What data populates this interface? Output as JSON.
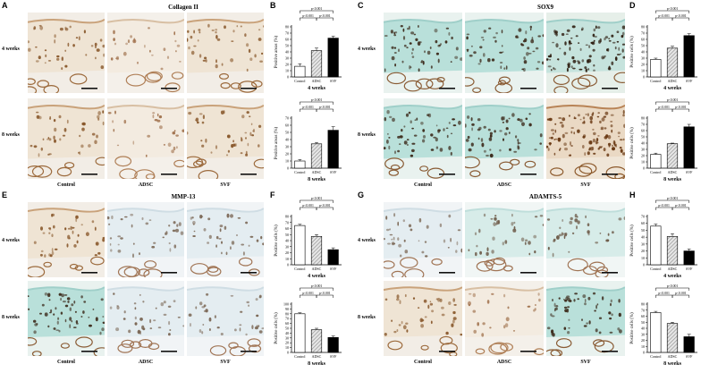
{
  "panels": {
    "A": {
      "label": "A",
      "title": "Collagen II"
    },
    "B": {
      "label": "B"
    },
    "C": {
      "label": "C",
      "title": "SOX9"
    },
    "D": {
      "label": "D"
    },
    "E": {
      "label": "E",
      "title": "MMP-13"
    },
    "F": {
      "label": "F"
    },
    "G": {
      "label": "G",
      "title": "ADAMTS-5"
    },
    "H": {
      "label": "H"
    }
  },
  "rows": {
    "w4": "4 weeks",
    "w8": "8 weeks"
  },
  "cols": {
    "control": "Control",
    "adsc": "ADSC",
    "svf": "SVF"
  },
  "colors": {
    "control": "#ffffff",
    "adsc": "#b9b9b9",
    "svf": "#000000",
    "brown": "#b07a45",
    "teal": "#7fc6c0",
    "bg": "#f1ece6"
  },
  "chart_data": [
    {
      "id": "B1",
      "type": "bar",
      "categories": [
        "Control",
        "ADSC",
        "SVF"
      ],
      "values": [
        17,
        42,
        62
      ],
      "errors": [
        4,
        4,
        3
      ],
      "ylabel": "Positive areas (%)",
      "xlabel": "4 weeks",
      "ylim": [
        0,
        80
      ],
      "yticks": [
        0,
        10,
        20,
        30,
        40,
        50,
        60,
        70,
        80
      ],
      "annotations": [
        {
          "from": 0,
          "to": 1,
          "text": "p<0.001",
          "level": 1
        },
        {
          "from": 1,
          "to": 2,
          "text": "p<0.001",
          "level": 1
        },
        {
          "from": 0,
          "to": 2,
          "text": "p<0.001",
          "level": 2
        }
      ]
    },
    {
      "id": "B2",
      "type": "bar",
      "categories": [
        "Control",
        "ADSC",
        "SVF"
      ],
      "values": [
        10,
        34,
        53
      ],
      "errors": [
        2,
        2,
        5
      ],
      "ylabel": "Positive areas (%)",
      "xlabel": "8 weeks",
      "ylim": [
        0,
        70
      ],
      "yticks": [
        0,
        10,
        20,
        30,
        40,
        50,
        60,
        70
      ],
      "annotations": [
        {
          "from": 0,
          "to": 1,
          "text": "p<0.001",
          "level": 1
        },
        {
          "from": 1,
          "to": 2,
          "text": "p<0.001",
          "level": 1
        },
        {
          "from": 0,
          "to": 2,
          "text": "p<0.001",
          "level": 2
        }
      ]
    },
    {
      "id": "D1",
      "type": "bar",
      "categories": [
        "Control",
        "ADSC",
        "SVF"
      ],
      "values": [
        28,
        46,
        66
      ],
      "errors": [
        2,
        3,
        3
      ],
      "ylabel": "Positive cells (%)",
      "xlabel": "4 weeks",
      "ylim": [
        0,
        80
      ],
      "yticks": [
        0,
        10,
        20,
        30,
        40,
        50,
        60,
        70,
        80
      ],
      "annotations": [
        {
          "from": 0,
          "to": 1,
          "text": "p<0.001",
          "level": 1
        },
        {
          "from": 1,
          "to": 2,
          "text": "p<0.001",
          "level": 1
        },
        {
          "from": 0,
          "to": 2,
          "text": "p<0.001",
          "level": 2
        }
      ]
    },
    {
      "id": "D2",
      "type": "bar",
      "categories": [
        "Control",
        "ADSC",
        "SVF"
      ],
      "values": [
        22,
        39,
        66
      ],
      "errors": [
        2,
        1,
        4
      ],
      "ylabel": "Positive cells (%)",
      "xlabel": "8 weeks",
      "ylim": [
        0,
        80
      ],
      "yticks": [
        0,
        10,
        20,
        30,
        40,
        50,
        60,
        70,
        80
      ],
      "annotations": [
        {
          "from": 0,
          "to": 1,
          "text": "p<0.001",
          "level": 1
        },
        {
          "from": 1,
          "to": 2,
          "text": "p<0.001",
          "level": 1
        },
        {
          "from": 0,
          "to": 2,
          "text": "p<0.001",
          "level": 2
        }
      ]
    },
    {
      "id": "F1",
      "type": "bar",
      "categories": [
        "Control",
        "ADSC",
        "SVF"
      ],
      "values": [
        65,
        47,
        25
      ],
      "errors": [
        2,
        3,
        3
      ],
      "ylabel": "Positive cells (%)",
      "xlabel": "4 weeks",
      "ylim": [
        0,
        80
      ],
      "yticks": [
        0,
        10,
        20,
        30,
        40,
        50,
        60,
        70,
        80
      ],
      "annotations": [
        {
          "from": 0,
          "to": 1,
          "text": "p<0.001",
          "level": 1
        },
        {
          "from": 1,
          "to": 2,
          "text": "p<0.001",
          "level": 1
        },
        {
          "from": 0,
          "to": 2,
          "text": "p<0.001",
          "level": 2
        }
      ]
    },
    {
      "id": "F2",
      "type": "bar",
      "categories": [
        "Control",
        "ADSC",
        "SVF"
      ],
      "values": [
        80,
        47,
        31
      ],
      "errors": [
        2,
        3,
        3
      ],
      "ylabel": "Positive cells (%)",
      "xlabel": "8 weeks",
      "ylim": [
        0,
        100
      ],
      "yticks": [
        0,
        10,
        20,
        30,
        40,
        50,
        60,
        70,
        80,
        90,
        100
      ],
      "annotations": [
        {
          "from": 0,
          "to": 1,
          "text": "p<0.001",
          "level": 1
        },
        {
          "from": 1,
          "to": 2,
          "text": "p<0.001",
          "level": 1
        },
        {
          "from": 0,
          "to": 2,
          "text": "p<0.001",
          "level": 2
        }
      ]
    },
    {
      "id": "H1",
      "type": "bar",
      "categories": [
        "Control",
        "ADSC",
        "SVF"
      ],
      "values": [
        56,
        41,
        20
      ],
      "errors": [
        3,
        4,
        3
      ],
      "ylabel": "Positive cells (%)",
      "xlabel": "4 weeks",
      "ylim": [
        0,
        70
      ],
      "yticks": [
        0,
        10,
        20,
        30,
        40,
        50,
        60,
        70
      ],
      "annotations": [
        {
          "from": 0,
          "to": 1,
          "text": "p<0.001",
          "level": 1
        },
        {
          "from": 1,
          "to": 2,
          "text": "p<0.001",
          "level": 1
        },
        {
          "from": 0,
          "to": 2,
          "text": "p<0.001",
          "level": 2
        }
      ]
    },
    {
      "id": "H2",
      "type": "bar",
      "categories": [
        "Control",
        "ADSC",
        "SVF"
      ],
      "values": [
        66,
        48,
        26
      ],
      "errors": [
        2,
        2,
        4
      ],
      "ylabel": "Positive cells (%)",
      "xlabel": "8 weeks",
      "ylim": [
        0,
        80
      ],
      "yticks": [
        0,
        10,
        20,
        30,
        40,
        50,
        60,
        70,
        80
      ],
      "annotations": [
        {
          "from": 0,
          "to": 1,
          "text": "p<0.001",
          "level": 1
        },
        {
          "from": 1,
          "to": 2,
          "text": "p<0.001",
          "level": 1
        },
        {
          "from": 0,
          "to": 2,
          "text": "p<0.001",
          "level": 2
        }
      ]
    }
  ]
}
